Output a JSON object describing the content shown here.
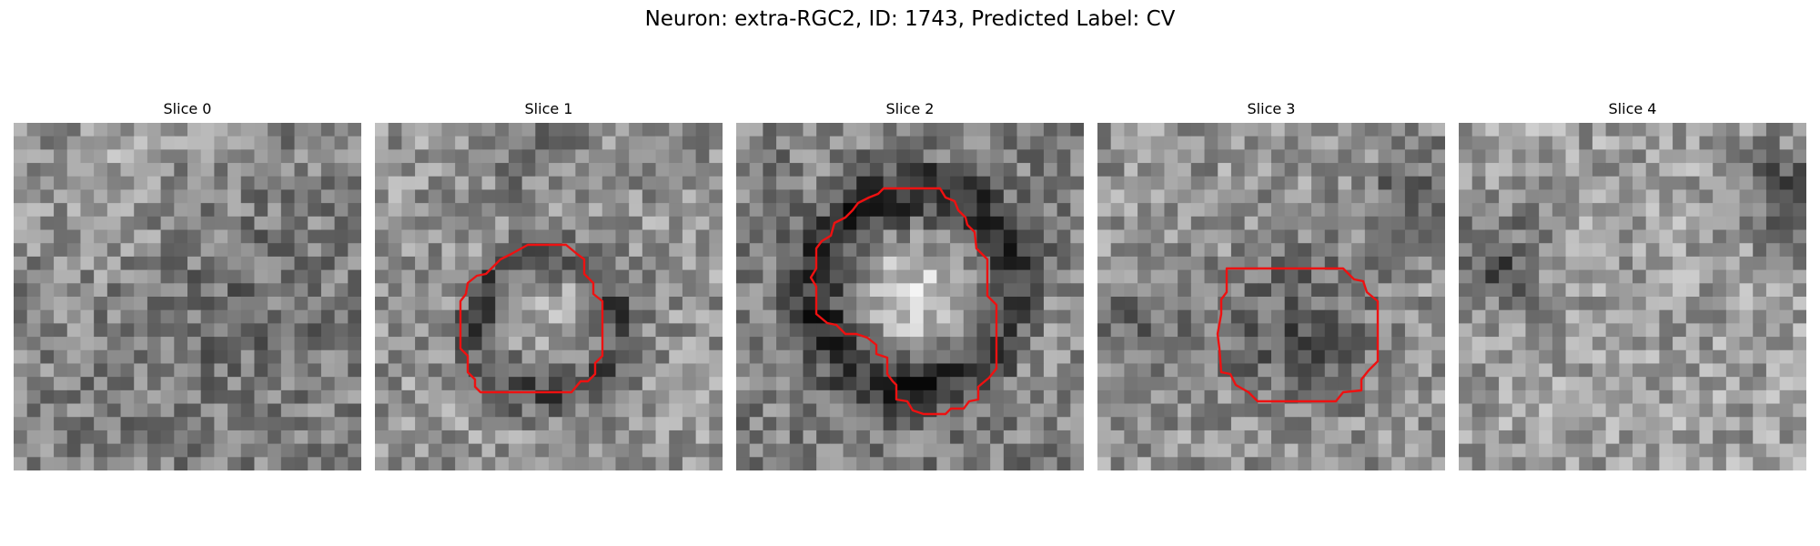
{
  "figure": {
    "title": "Neuron: extra-RGC2, ID: 1743, Predicted Label: CV",
    "contour_color": "#ee1111"
  },
  "panels": [
    {
      "title": "Slice 0"
    },
    {
      "title": "Slice 1"
    },
    {
      "title": "Slice 2"
    },
    {
      "title": "Slice 3"
    },
    {
      "title": "Slice 4"
    }
  ]
}
